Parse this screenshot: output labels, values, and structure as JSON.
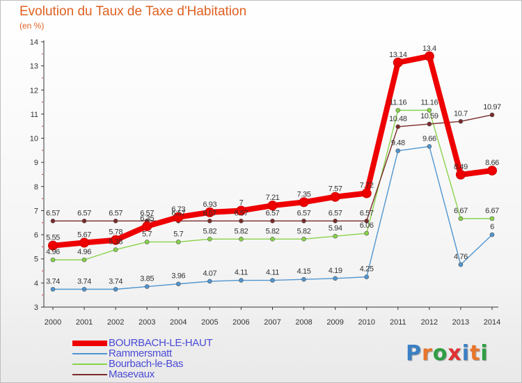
{
  "title": "Evolution du Taux de Taxe d'Habitation",
  "subtitle": "(en %)",
  "logo": {
    "text": "Proxiti",
    "letter_colors": [
      "#3b7fc4",
      "#e8762c",
      "#2f9e44",
      "#e03131",
      "#3b7fc4",
      "#e8762c",
      "#2f9e44"
    ]
  },
  "chart_data": {
    "type": "line",
    "x": [
      2000,
      2001,
      2002,
      2003,
      2004,
      2005,
      2006,
      2007,
      2008,
      2009,
      2010,
      2011,
      2012,
      2013,
      2014
    ],
    "ylim": [
      3,
      14
    ],
    "yticks": [
      3,
      4,
      5,
      6,
      7,
      8,
      9,
      10,
      11,
      12,
      13,
      14
    ],
    "grid": false,
    "legend_position": "bottom-left",
    "series": [
      {
        "name": "BOURBACH-LE-HAUT",
        "color": "#ee0000",
        "highlight": true,
        "values": [
          5.55,
          5.67,
          5.78,
          6.35,
          6.73,
          6.93,
          7,
          7.21,
          7.35,
          7.57,
          7.72,
          13.14,
          13.4,
          8.49,
          8.66
        ],
        "labels": [
          "5.55",
          "5.67",
          "5.78",
          "6.35",
          "6.73",
          "6.93",
          "7",
          "7.21",
          "7.35",
          "7.57",
          "7.72",
          "13.14",
          "13.4",
          "8.49",
          "8.66"
        ]
      },
      {
        "name": "Rammersmatt",
        "color": "#4f95cf",
        "highlight": false,
        "values": [
          3.74,
          3.74,
          3.74,
          3.85,
          3.96,
          4.07,
          4.11,
          4.11,
          4.15,
          4.19,
          4.25,
          9.48,
          9.66,
          4.76,
          6
        ],
        "labels": [
          "3.74",
          "3.74",
          "3.74",
          "3.85",
          "3.96",
          "4.07",
          "4.11",
          "4.11",
          "4.15",
          "4.19",
          "4.25",
          "9.48",
          "9.66",
          "4.76",
          "6"
        ]
      },
      {
        "name": "Bourbach-le-Bas",
        "color": "#88d34a",
        "highlight": false,
        "values": [
          4.96,
          4.96,
          5.38,
          5.7,
          5.7,
          5.82,
          5.82,
          5.82,
          5.82,
          5.94,
          6.06,
          11.16,
          11.16,
          6.67,
          6.67
        ],
        "labels": [
          "4.96",
          "4.96",
          "5.38",
          "5.7",
          "5.7",
          "5.82",
          "5.82",
          "5.82",
          "5.82",
          "5.94",
          "6.06",
          "11.16",
          "11.16",
          "6.67",
          "6.67"
        ]
      },
      {
        "name": "Masevaux",
        "color": "#7a2a2a",
        "highlight": false,
        "values": [
          6.57,
          6.57,
          6.57,
          6.57,
          6.57,
          6.57,
          6.57,
          6.57,
          6.57,
          6.57,
          6.57,
          10.48,
          10.59,
          10.7,
          10.97
        ],
        "labels": [
          "6.57",
          "6.57",
          "6.57",
          "6.57",
          "6.57",
          "6.57",
          "6.57",
          "6.57",
          "6.57",
          "6.57",
          "6.57",
          "10.48",
          "10.59",
          "10.7",
          "10.97"
        ]
      }
    ]
  }
}
